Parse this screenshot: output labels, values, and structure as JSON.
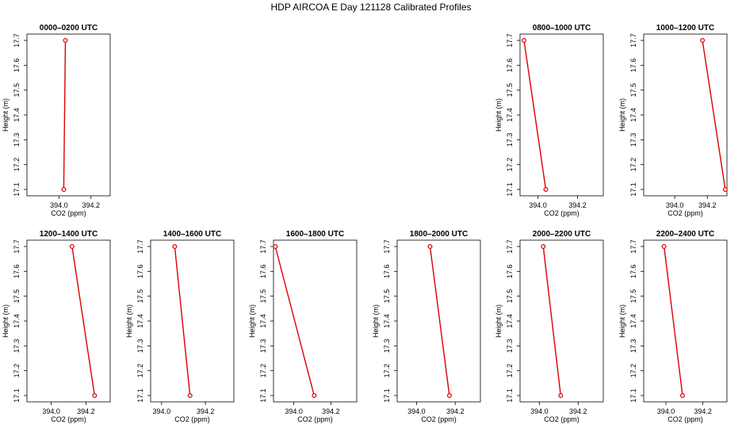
{
  "figure": {
    "title": "HDP AIRCOA E  Day 121128  Calibrated Profiles"
  },
  "style": {
    "series_color": "#dd0000",
    "axis_color": "#000000"
  },
  "chart_data": [
    {
      "type": "line",
      "title": "0000–0200 UTC",
      "xlabel": "CO2 (ppm)",
      "ylabel": "Height (m)",
      "xlim": [
        393.8,
        394.32
      ],
      "ylim": [
        17.1,
        17.7
      ],
      "xticks": [
        "394.0",
        "394.2"
      ],
      "yticks": [
        "17.1",
        "17.2",
        "17.3",
        "17.4",
        "17.5",
        "17.6",
        "17.7"
      ],
      "x": [
        394.03,
        394.04
      ],
      "y": [
        17.1,
        17.7
      ]
    },
    {
      "type": "line",
      "title": "0800–1000 UTC",
      "xlabel": "CO2 (ppm)",
      "ylabel": "Height (m)",
      "xlim": [
        393.91,
        394.33
      ],
      "ylim": [
        17.1,
        17.7
      ],
      "xticks": [
        "394.0",
        "394.2"
      ],
      "yticks": [
        "17.1",
        "17.2",
        "17.3",
        "17.4",
        "17.5",
        "17.6",
        "17.7"
      ],
      "x": [
        394.04,
        393.93
      ],
      "y": [
        17.1,
        17.7
      ]
    },
    {
      "type": "line",
      "title": "1000–1200 UTC",
      "xlabel": "CO2 (ppm)",
      "ylabel": "Height (m)",
      "xlim": [
        393.81,
        394.32
      ],
      "ylim": [
        17.1,
        17.7
      ],
      "xticks": [
        "394.0",
        "394.2"
      ],
      "yticks": [
        "17.1",
        "17.2",
        "17.3",
        "17.4",
        "17.5",
        "17.6",
        "17.7"
      ],
      "x": [
        394.31,
        394.17
      ],
      "y": [
        17.1,
        17.7
      ]
    },
    {
      "type": "line",
      "title": "1200–1400 UTC",
      "xlabel": "CO2 (ppm)",
      "ylabel": "Height (m)",
      "xlim": [
        393.86,
        394.34
      ],
      "ylim": [
        17.1,
        17.7
      ],
      "xticks": [
        "394.0",
        "394.2"
      ],
      "yticks": [
        "17.1",
        "17.2",
        "17.3",
        "17.4",
        "17.5",
        "17.6",
        "17.7"
      ],
      "x": [
        394.25,
        394.12
      ],
      "y": [
        17.1,
        17.7
      ]
    },
    {
      "type": "line",
      "title": "1400–1600 UTC",
      "xlabel": "CO2 (ppm)",
      "ylabel": "Height (m)",
      "xlim": [
        393.95,
        394.33
      ],
      "ylim": [
        17.1,
        17.7
      ],
      "xticks": [
        "394.0",
        "394.2"
      ],
      "yticks": [
        "17.1",
        "17.2",
        "17.3",
        "17.4",
        "17.5",
        "17.6",
        "17.7"
      ],
      "x": [
        394.13,
        394.06
      ],
      "y": [
        17.1,
        17.7
      ]
    },
    {
      "type": "line",
      "title": "1600–1800 UTC",
      "xlabel": "CO2 (ppm)",
      "ylabel": "Height (m)",
      "xlim": [
        393.89,
        394.34
      ],
      "ylim": [
        17.1,
        17.7
      ],
      "xticks": [
        "394.0",
        "394.2"
      ],
      "yticks": [
        "17.1",
        "17.2",
        "17.3",
        "17.4",
        "17.5",
        "17.6",
        "17.7"
      ],
      "x": [
        394.11,
        393.9
      ],
      "y": [
        17.1,
        17.7
      ]
    },
    {
      "type": "line",
      "title": "1800–2000 UTC",
      "xlabel": "CO2 (ppm)",
      "ylabel": "Height (m)",
      "xlim": [
        393.9,
        394.33
      ],
      "ylim": [
        17.1,
        17.7
      ],
      "xticks": [
        "394.0",
        "394.2"
      ],
      "yticks": [
        "17.1",
        "17.2",
        "17.3",
        "17.4",
        "17.5",
        "17.6",
        "17.7"
      ],
      "x": [
        394.17,
        394.07
      ],
      "y": [
        17.1,
        17.7
      ]
    },
    {
      "type": "line",
      "title": "2000–2200 UTC",
      "xlabel": "CO2 (ppm)",
      "ylabel": "Height (m)",
      "xlim": [
        393.9,
        394.33
      ],
      "ylim": [
        17.1,
        17.7
      ],
      "xticks": [
        "394.0",
        "394.2"
      ],
      "yticks": [
        "17.1",
        "17.2",
        "17.3",
        "17.4",
        "17.5",
        "17.6",
        "17.7"
      ],
      "x": [
        394.11,
        394.02
      ],
      "y": [
        17.1,
        17.7
      ]
    },
    {
      "type": "line",
      "title": "2200–2400 UTC",
      "xlabel": "CO2 (ppm)",
      "ylabel": "Height (m)",
      "xlim": [
        393.88,
        394.33
      ],
      "ylim": [
        17.1,
        17.7
      ],
      "xticks": [
        "394.0",
        "394.2"
      ],
      "yticks": [
        "17.1",
        "17.2",
        "17.3",
        "17.4",
        "17.5",
        "17.6",
        "17.7"
      ],
      "x": [
        394.09,
        393.99
      ],
      "y": [
        17.1,
        17.7
      ]
    }
  ]
}
